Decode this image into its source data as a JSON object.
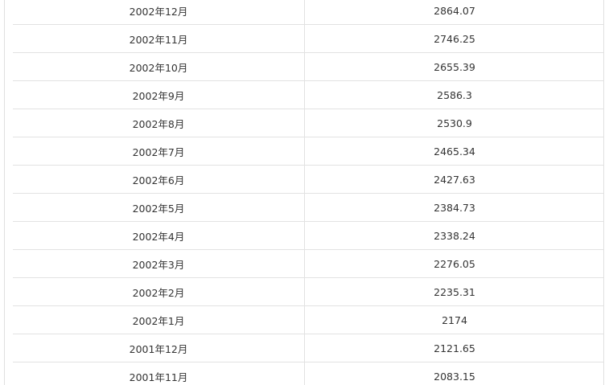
{
  "table": {
    "rows": [
      {
        "month": "2002年12月",
        "value": "2864.07"
      },
      {
        "month": "2002年11月",
        "value": "2746.25"
      },
      {
        "month": "2002年10月",
        "value": "2655.39"
      },
      {
        "month": "2002年9月",
        "value": "2586.3"
      },
      {
        "month": "2002年8月",
        "value": "2530.9"
      },
      {
        "month": "2002年7月",
        "value": "2465.34"
      },
      {
        "month": "2002年6月",
        "value": "2427.63"
      },
      {
        "month": "2002年5月",
        "value": "2384.73"
      },
      {
        "month": "2002年4月",
        "value": "2338.24"
      },
      {
        "month": "2002年3月",
        "value": "2276.05"
      },
      {
        "month": "2002年2月",
        "value": "2235.31"
      },
      {
        "month": "2002年1月",
        "value": "2174"
      },
      {
        "month": "2001年12月",
        "value": "2121.65"
      },
      {
        "month": "2001年11月",
        "value": "2083.15"
      }
    ]
  }
}
